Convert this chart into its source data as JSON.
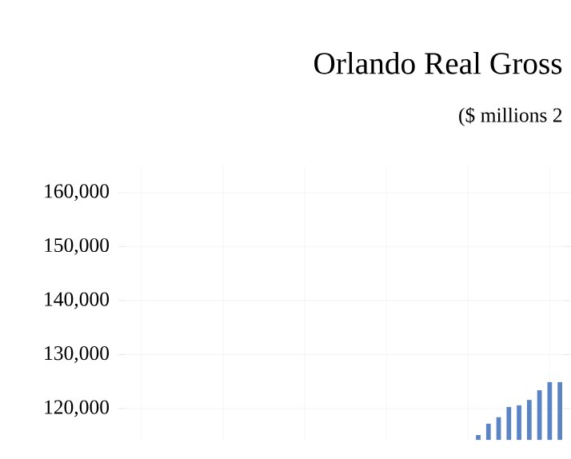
{
  "chart_data": {
    "type": "bar",
    "title": "Orlando Real Gross",
    "subtitle": "($ millions 2",
    "categories": [
      null,
      null,
      null,
      null,
      null,
      null,
      null,
      null,
      null,
      null,
      null,
      null,
      null,
      null,
      null,
      null,
      null,
      null,
      null,
      null,
      null,
      null,
      null,
      null,
      null,
      null,
      null,
      null,
      null,
      null,
      null,
      null,
      null,
      null,
      null,
      null,
      null,
      null,
      null,
      null,
      null,
      null,
      null
    ],
    "values": [
      null,
      null,
      null,
      null,
      null,
      null,
      null,
      null,
      null,
      null,
      null,
      null,
      null,
      null,
      null,
      null,
      null,
      null,
      null,
      null,
      null,
      null,
      null,
      null,
      null,
      null,
      null,
      null,
      null,
      null,
      null,
      null,
      null,
      null,
      115100,
      117200,
      118400,
      120300,
      120600,
      121600,
      123400,
      124900,
      124900
    ],
    "color": "#5b84c4",
    "ylim": [
      114200,
      165000
    ],
    "yticks": [
      {
        "value": 120000,
        "label": "120,000"
      },
      {
        "value": 130000,
        "label": "130,000"
      },
      {
        "value": 140000,
        "label": "140,000"
      },
      {
        "value": 150000,
        "label": "150,000"
      },
      {
        "value": 160000,
        "label": "160,000"
      }
    ],
    "grid": true,
    "tick_labels": "y"
  }
}
